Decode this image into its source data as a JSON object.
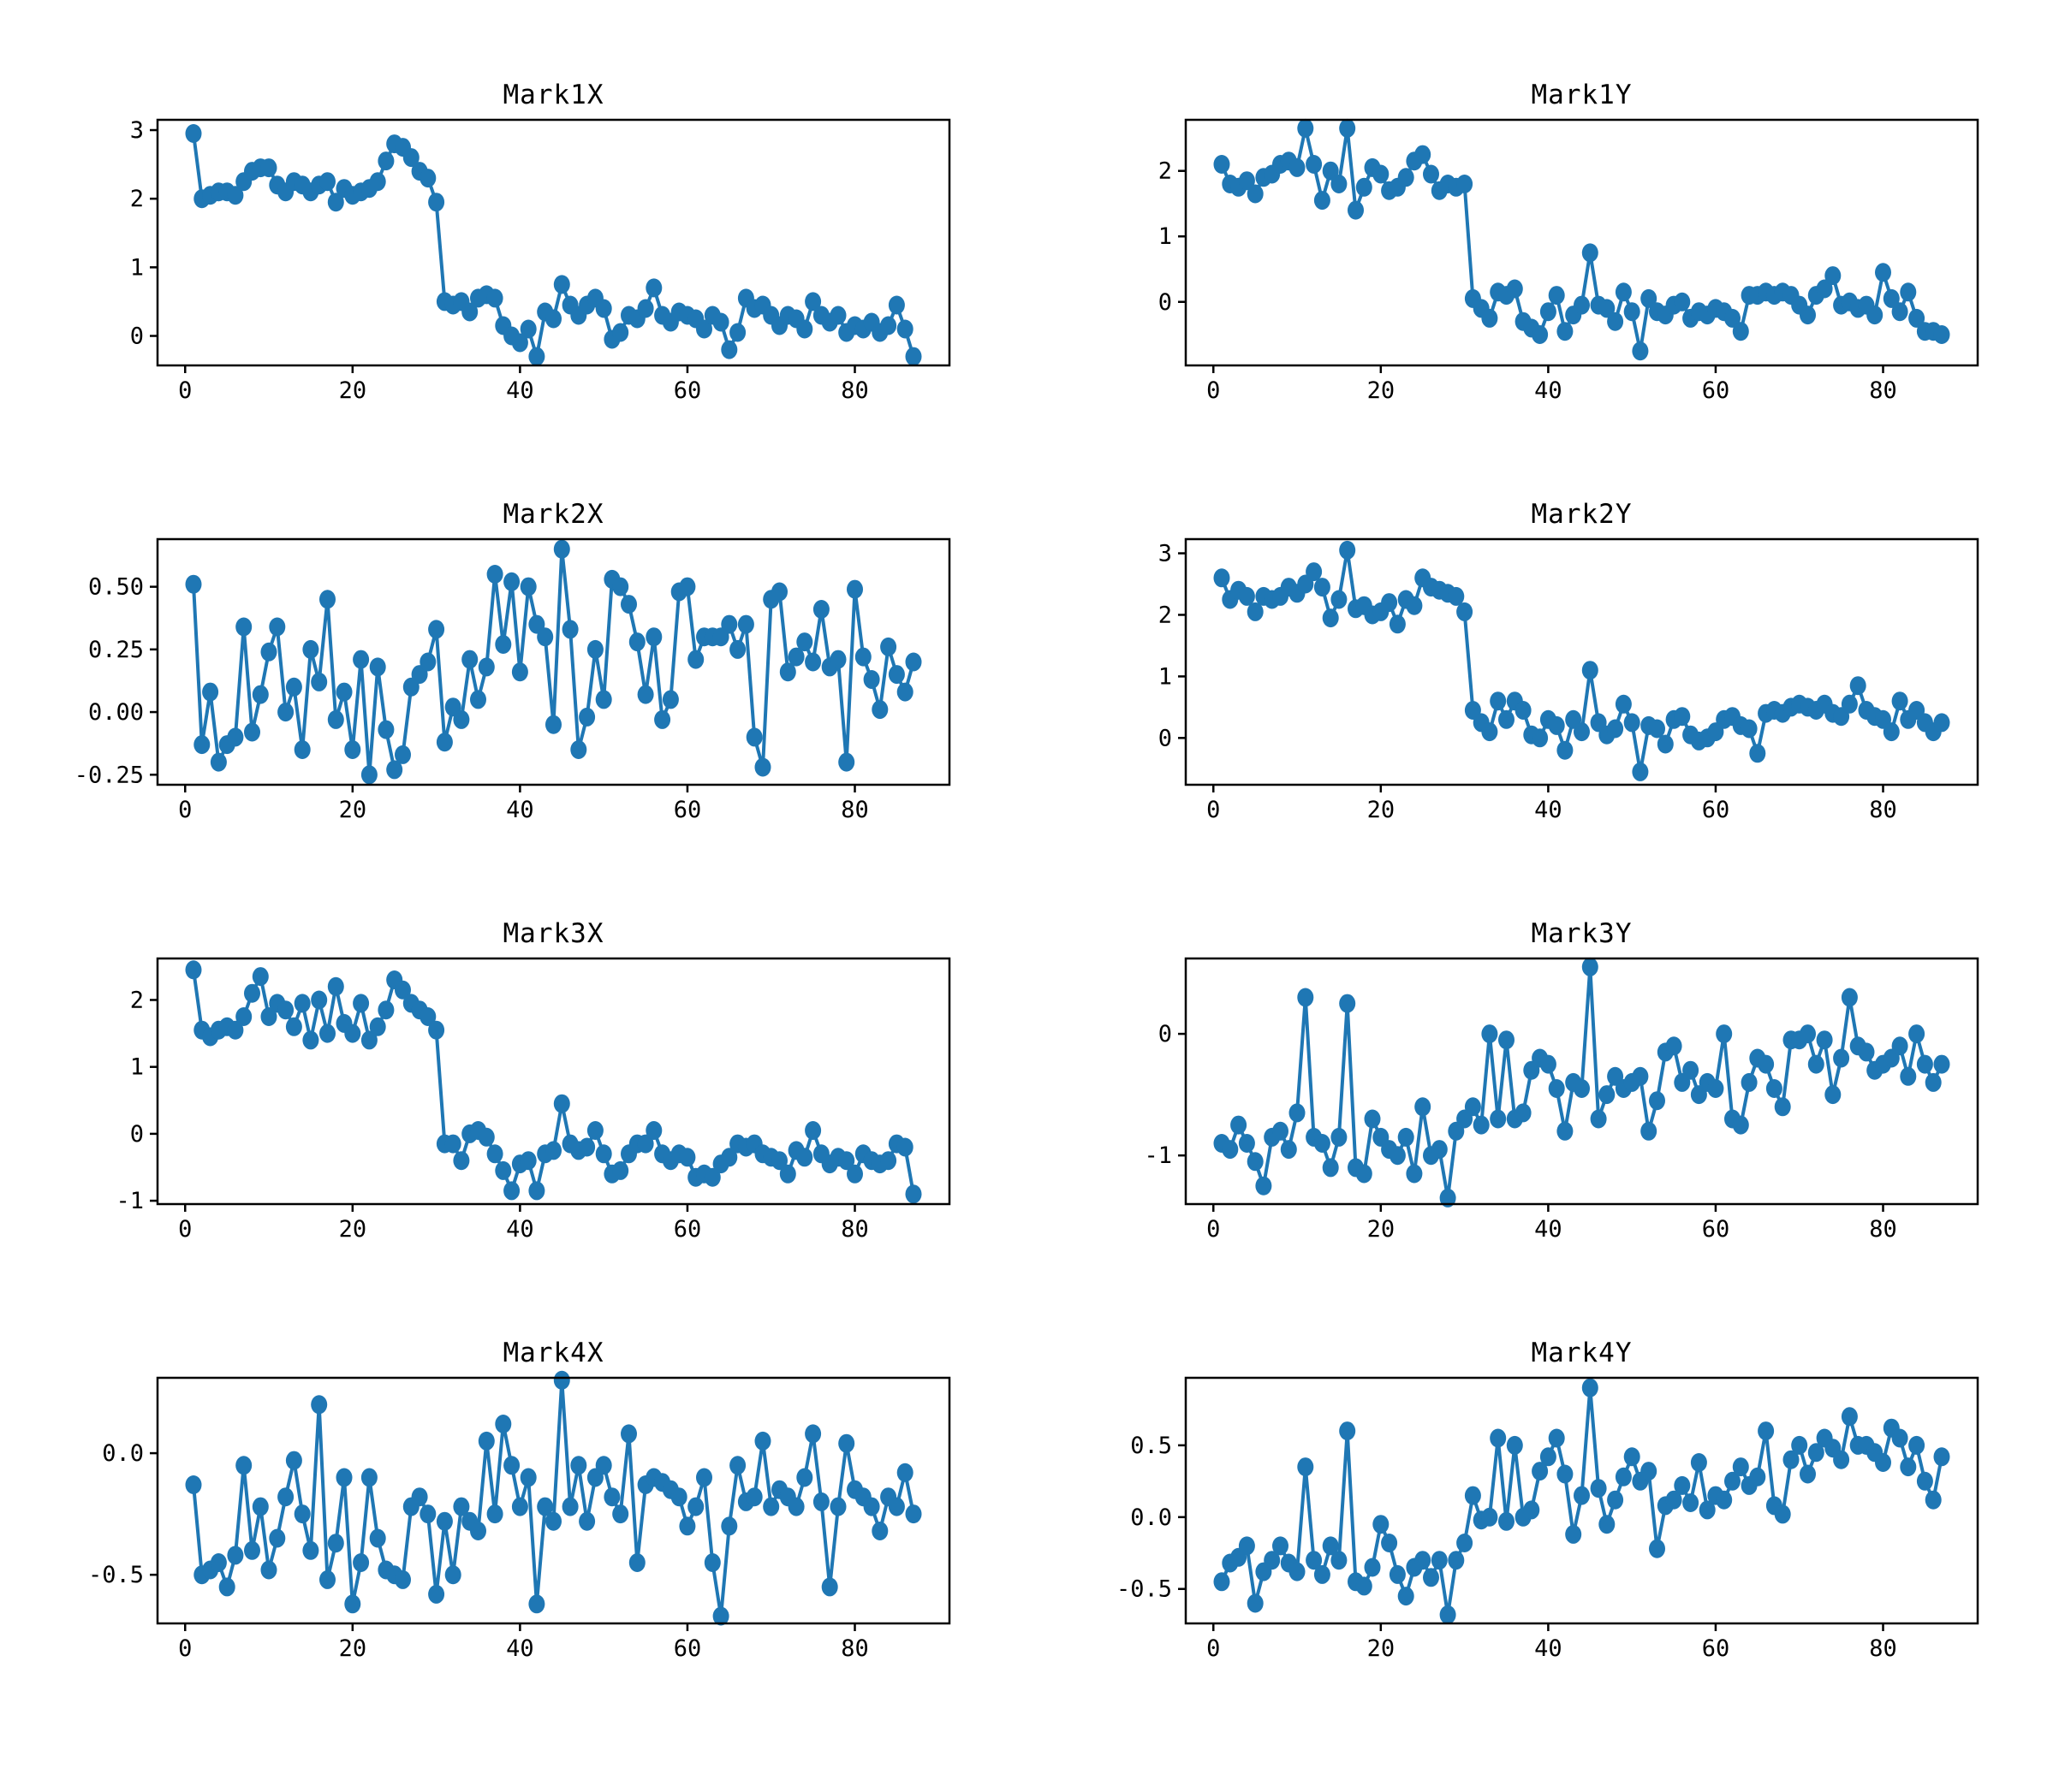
{
  "figure": {
    "background": "#ffffff",
    "series_color": "#1f77b4",
    "frame_color": "#000000",
    "text_color": "#000000"
  },
  "chart_data": [
    {
      "type": "line",
      "title": "Mark1X",
      "x_start": 1,
      "xlim": [
        -3.3,
        91.3
      ],
      "xticks": [
        0,
        20,
        40,
        60,
        80
      ],
      "xtick_labels": [
        "0",
        "20",
        "40",
        "60",
        "80"
      ],
      "ylim": [
        -0.43,
        3.15
      ],
      "yticks": [
        0,
        1,
        2,
        3
      ],
      "ytick_labels": [
        "0",
        "1",
        "2",
        "3"
      ],
      "grid": false,
      "legend": null,
      "values": [
        2.95,
        2.0,
        2.05,
        2.1,
        2.1,
        2.05,
        2.25,
        2.4,
        2.45,
        2.45,
        2.2,
        2.1,
        2.25,
        2.2,
        2.1,
        2.2,
        2.25,
        1.95,
        2.15,
        2.05,
        2.1,
        2.15,
        2.25,
        2.55,
        2.8,
        2.75,
        2.6,
        2.4,
        2.3,
        1.95,
        0.5,
        0.45,
        0.5,
        0.35,
        0.55,
        0.6,
        0.55,
        0.15,
        0.0,
        -0.1,
        0.1,
        -0.3,
        0.35,
        0.25,
        0.75,
        0.45,
        0.3,
        0.45,
        0.55,
        0.4,
        -0.05,
        0.05,
        0.3,
        0.25,
        0.4,
        0.7,
        0.3,
        0.2,
        0.35,
        0.3,
        0.25,
        0.1,
        0.3,
        0.2,
        -0.2,
        0.05,
        0.55,
        0.4,
        0.45,
        0.3,
        0.15,
        0.3,
        0.25,
        0.1,
        0.5,
        0.3,
        0.2,
        0.3,
        0.05,
        0.15,
        0.1,
        0.2,
        0.05,
        0.15,
        0.45,
        0.1,
        -0.3
      ]
    },
    {
      "type": "line",
      "title": "Mark1Y",
      "x_start": 1,
      "xlim": [
        -3.3,
        91.3
      ],
      "xticks": [
        0,
        20,
        40,
        60,
        80
      ],
      "xtick_labels": [
        "0",
        "20",
        "40",
        "60",
        "80"
      ],
      "ylim": [
        -0.97,
        2.78
      ],
      "yticks": [
        0,
        1,
        2
      ],
      "ytick_labels": [
        "0",
        "1",
        "2"
      ],
      "grid": false,
      "legend": null,
      "values": [
        2.1,
        1.8,
        1.75,
        1.85,
        1.65,
        1.9,
        1.95,
        2.1,
        2.15,
        2.05,
        2.65,
        2.1,
        1.55,
        2.0,
        1.8,
        2.65,
        1.4,
        1.75,
        2.05,
        1.95,
        1.7,
        1.75,
        1.9,
        2.15,
        2.25,
        1.95,
        1.7,
        1.8,
        1.75,
        1.8,
        0.05,
        -0.1,
        -0.25,
        0.15,
        0.1,
        0.2,
        -0.3,
        -0.4,
        -0.5,
        -0.15,
        0.1,
        -0.45,
        -0.2,
        -0.05,
        0.75,
        -0.05,
        -0.1,
        -0.3,
        0.15,
        -0.15,
        -0.75,
        0.05,
        -0.15,
        -0.2,
        -0.05,
        0.0,
        -0.25,
        -0.15,
        -0.2,
        -0.1,
        -0.15,
        -0.25,
        -0.45,
        0.1,
        0.1,
        0.15,
        0.1,
        0.15,
        0.1,
        -0.05,
        -0.2,
        0.1,
        0.2,
        0.4,
        -0.05,
        0.0,
        -0.1,
        -0.05,
        -0.2,
        0.45,
        0.05,
        -0.15,
        0.15,
        -0.25,
        -0.45,
        -0.45,
        -0.5
      ]
    },
    {
      "type": "line",
      "title": "Mark2X",
      "x_start": 1,
      "xlim": [
        -3.3,
        91.3
      ],
      "xticks": [
        0,
        20,
        40,
        60,
        80
      ],
      "xtick_labels": [
        "0",
        "20",
        "40",
        "60",
        "80"
      ],
      "ylim": [
        -0.29,
        0.69
      ],
      "yticks": [
        -0.25,
        0.0,
        0.25,
        0.5
      ],
      "ytick_labels": [
        "-0.25",
        "0.00",
        "0.25",
        "0.50"
      ],
      "grid": false,
      "legend": null,
      "values": [
        0.51,
        -0.13,
        0.08,
        -0.2,
        -0.13,
        -0.1,
        0.34,
        -0.08,
        0.07,
        0.24,
        0.34,
        0.0,
        0.1,
        -0.15,
        0.25,
        0.12,
        0.45,
        -0.03,
        0.08,
        -0.15,
        0.21,
        -0.25,
        0.18,
        -0.07,
        -0.23,
        -0.17,
        0.1,
        0.15,
        0.2,
        0.33,
        -0.12,
        0.02,
        -0.03,
        0.21,
        0.05,
        0.18,
        0.55,
        0.27,
        0.52,
        0.16,
        0.5,
        0.35,
        0.3,
        -0.05,
        0.65,
        0.33,
        -0.15,
        -0.02,
        0.25,
        0.05,
        0.53,
        0.5,
        0.43,
        0.28,
        0.07,
        0.3,
        -0.03,
        0.05,
        0.48,
        0.5,
        0.21,
        0.3,
        0.3,
        0.3,
        0.35,
        0.25,
        0.35,
        -0.1,
        -0.22,
        0.45,
        0.48,
        0.16,
        0.22,
        0.28,
        0.2,
        0.41,
        0.18,
        0.21,
        -0.2,
        0.49,
        0.22,
        0.13,
        0.01,
        0.26,
        0.15,
        0.08,
        0.2
      ]
    },
    {
      "type": "line",
      "title": "Mark2Y",
      "x_start": 1,
      "xlim": [
        -3.3,
        91.3
      ],
      "xticks": [
        0,
        20,
        40,
        60,
        80
      ],
      "xtick_labels": [
        "0",
        "20",
        "40",
        "60",
        "80"
      ],
      "ylim": [
        -0.76,
        3.23
      ],
      "yticks": [
        0,
        1,
        2,
        3
      ],
      "ytick_labels": [
        "0",
        "1",
        "2",
        "3"
      ],
      "grid": false,
      "legend": null,
      "values": [
        2.6,
        2.25,
        2.4,
        2.3,
        2.05,
        2.3,
        2.25,
        2.3,
        2.45,
        2.35,
        2.5,
        2.7,
        2.45,
        1.95,
        2.25,
        3.05,
        2.1,
        2.15,
        2.0,
        2.05,
        2.2,
        1.85,
        2.25,
        2.15,
        2.6,
        2.45,
        2.4,
        2.35,
        2.3,
        2.05,
        0.45,
        0.25,
        0.1,
        0.6,
        0.3,
        0.6,
        0.45,
        0.05,
        0.0,
        0.3,
        0.2,
        -0.2,
        0.3,
        0.1,
        1.1,
        0.25,
        0.05,
        0.15,
        0.55,
        0.25,
        -0.55,
        0.2,
        0.15,
        -0.1,
        0.3,
        0.35,
        0.05,
        -0.05,
        0.0,
        0.1,
        0.3,
        0.35,
        0.2,
        0.15,
        -0.25,
        0.4,
        0.45,
        0.4,
        0.5,
        0.55,
        0.5,
        0.45,
        0.55,
        0.4,
        0.35,
        0.55,
        0.85,
        0.45,
        0.35,
        0.3,
        0.1,
        0.6,
        0.3,
        0.45,
        0.25,
        0.1,
        0.25
      ]
    },
    {
      "type": "line",
      "title": "Mark3X",
      "x_start": 1,
      "xlim": [
        -3.3,
        91.3
      ],
      "xticks": [
        0,
        20,
        40,
        60,
        80
      ],
      "xtick_labels": [
        "0",
        "20",
        "40",
        "60",
        "80"
      ],
      "ylim": [
        -1.05,
        2.62
      ],
      "yticks": [
        -1,
        0,
        1,
        2
      ],
      "ytick_labels": [
        "-1",
        "0",
        "1",
        "2"
      ],
      "grid": false,
      "legend": null,
      "values": [
        2.45,
        1.55,
        1.45,
        1.55,
        1.6,
        1.55,
        1.75,
        2.1,
        2.35,
        1.75,
        1.95,
        1.85,
        1.6,
        1.95,
        1.4,
        2.0,
        1.5,
        2.2,
        1.65,
        1.5,
        1.95,
        1.4,
        1.6,
        1.85,
        2.3,
        2.15,
        1.95,
        1.85,
        1.75,
        1.55,
        -0.15,
        -0.15,
        -0.4,
        0.0,
        0.05,
        -0.05,
        -0.3,
        -0.55,
        -0.85,
        -0.45,
        -0.4,
        -0.85,
        -0.3,
        -0.25,
        0.45,
        -0.15,
        -0.25,
        -0.2,
        0.05,
        -0.3,
        -0.6,
        -0.55,
        -0.3,
        -0.15,
        -0.15,
        0.05,
        -0.3,
        -0.4,
        -0.3,
        -0.35,
        -0.65,
        -0.6,
        -0.65,
        -0.45,
        -0.35,
        -0.15,
        -0.2,
        -0.15,
        -0.3,
        -0.35,
        -0.4,
        -0.6,
        -0.25,
        -0.35,
        0.05,
        -0.3,
        -0.45,
        -0.35,
        -0.4,
        -0.6,
        -0.3,
        -0.4,
        -0.45,
        -0.4,
        -0.15,
        -0.2,
        -0.9
      ]
    },
    {
      "type": "line",
      "title": "Mark3Y",
      "x_start": 1,
      "xlim": [
        -3.3,
        91.3
      ],
      "xticks": [
        0,
        20,
        40,
        60,
        80
      ],
      "xtick_labels": [
        "0",
        "20",
        "40",
        "60",
        "80"
      ],
      "ylim": [
        -1.4,
        0.62
      ],
      "yticks": [
        -1,
        0
      ],
      "ytick_labels": [
        "-1",
        "0"
      ],
      "grid": false,
      "legend": null,
      "values": [
        -0.9,
        -0.95,
        -0.75,
        -0.9,
        -1.05,
        -1.25,
        -0.85,
        -0.8,
        -0.95,
        -0.65,
        0.3,
        -0.85,
        -0.9,
        -1.1,
        -0.85,
        0.25,
        -1.1,
        -1.15,
        -0.7,
        -0.85,
        -0.95,
        -1.0,
        -0.85,
        -1.15,
        -0.6,
        -1.0,
        -0.95,
        -1.35,
        -0.8,
        -0.7,
        -0.6,
        -0.75,
        0.0,
        -0.7,
        -0.05,
        -0.7,
        -0.65,
        -0.3,
        -0.2,
        -0.25,
        -0.45,
        -0.8,
        -0.4,
        -0.45,
        0.55,
        -0.7,
        -0.5,
        -0.35,
        -0.45,
        -0.4,
        -0.35,
        -0.8,
        -0.55,
        -0.15,
        -0.1,
        -0.4,
        -0.3,
        -0.5,
        -0.4,
        -0.45,
        0.0,
        -0.7,
        -0.75,
        -0.4,
        -0.2,
        -0.25,
        -0.45,
        -0.6,
        -0.05,
        -0.05,
        0.0,
        -0.25,
        -0.05,
        -0.5,
        -0.2,
        0.3,
        -0.1,
        -0.15,
        -0.3,
        -0.25,
        -0.2,
        -0.1,
        -0.35,
        0.0,
        -0.25,
        -0.4,
        -0.25
      ]
    },
    {
      "type": "line",
      "title": "Mark4X",
      "x_start": 1,
      "xlim": [
        -3.3,
        91.3
      ],
      "xticks": [
        0,
        20,
        40,
        60,
        80
      ],
      "xtick_labels": [
        "0",
        "20",
        "40",
        "60",
        "80"
      ],
      "ylim": [
        -0.7,
        0.31
      ],
      "yticks": [
        -0.5,
        0.0
      ],
      "ytick_labels": [
        "-0.5",
        "0.0"
      ],
      "grid": false,
      "legend": null,
      "values": [
        -0.13,
        -0.5,
        -0.48,
        -0.45,
        -0.55,
        -0.42,
        -0.05,
        -0.4,
        -0.22,
        -0.48,
        -0.35,
        -0.18,
        -0.03,
        -0.25,
        -0.4,
        0.2,
        -0.52,
        -0.37,
        -0.1,
        -0.62,
        -0.45,
        -0.1,
        -0.35,
        -0.48,
        -0.5,
        -0.52,
        -0.22,
        -0.18,
        -0.25,
        -0.58,
        -0.28,
        -0.5,
        -0.22,
        -0.28,
        -0.32,
        0.05,
        -0.25,
        0.12,
        -0.05,
        -0.22,
        -0.1,
        -0.62,
        -0.22,
        -0.28,
        0.3,
        -0.22,
        -0.05,
        -0.28,
        -0.1,
        -0.05,
        -0.18,
        -0.25,
        0.08,
        -0.45,
        -0.13,
        -0.1,
        -0.12,
        -0.15,
        -0.18,
        -0.3,
        -0.22,
        -0.1,
        -0.45,
        -0.67,
        -0.3,
        -0.05,
        -0.2,
        -0.18,
        0.05,
        -0.22,
        -0.15,
        -0.18,
        -0.22,
        -0.1,
        0.08,
        -0.2,
        -0.55,
        -0.22,
        0.04,
        -0.15,
        -0.18,
        -0.22,
        -0.32,
        -0.18,
        -0.22,
        -0.08,
        -0.25
      ]
    },
    {
      "type": "line",
      "title": "Mark4Y",
      "x_start": 1,
      "xlim": [
        -3.3,
        91.3
      ],
      "xticks": [
        0,
        20,
        40,
        60,
        80
      ],
      "xtick_labels": [
        "0",
        "20",
        "40",
        "60",
        "80"
      ],
      "ylim": [
        -0.74,
        0.97
      ],
      "yticks": [
        -0.5,
        0.0,
        0.5
      ],
      "ytick_labels": [
        "-0.5",
        "0.0",
        "0.5"
      ],
      "grid": false,
      "legend": null,
      "values": [
        -0.45,
        -0.32,
        -0.28,
        -0.2,
        -0.6,
        -0.38,
        -0.3,
        -0.2,
        -0.32,
        -0.38,
        0.35,
        -0.3,
        -0.4,
        -0.2,
        -0.3,
        0.6,
        -0.45,
        -0.48,
        -0.35,
        -0.05,
        -0.18,
        -0.4,
        -0.55,
        -0.35,
        -0.3,
        -0.42,
        -0.3,
        -0.68,
        -0.3,
        -0.18,
        0.15,
        -0.02,
        0.0,
        0.55,
        -0.03,
        0.5,
        0.0,
        0.05,
        0.32,
        0.42,
        0.55,
        0.3,
        -0.12,
        0.15,
        0.9,
        0.2,
        -0.05,
        0.12,
        0.28,
        0.42,
        0.25,
        0.32,
        -0.22,
        0.08,
        0.12,
        0.22,
        0.1,
        0.38,
        0.05,
        0.15,
        0.12,
        0.25,
        0.35,
        0.22,
        0.28,
        0.6,
        0.08,
        0.02,
        0.4,
        0.5,
        0.3,
        0.45,
        0.55,
        0.48,
        0.4,
        0.7,
        0.5,
        0.5,
        0.45,
        0.38,
        0.62,
        0.55,
        0.35,
        0.5,
        0.25,
        0.12,
        0.42
      ]
    }
  ]
}
